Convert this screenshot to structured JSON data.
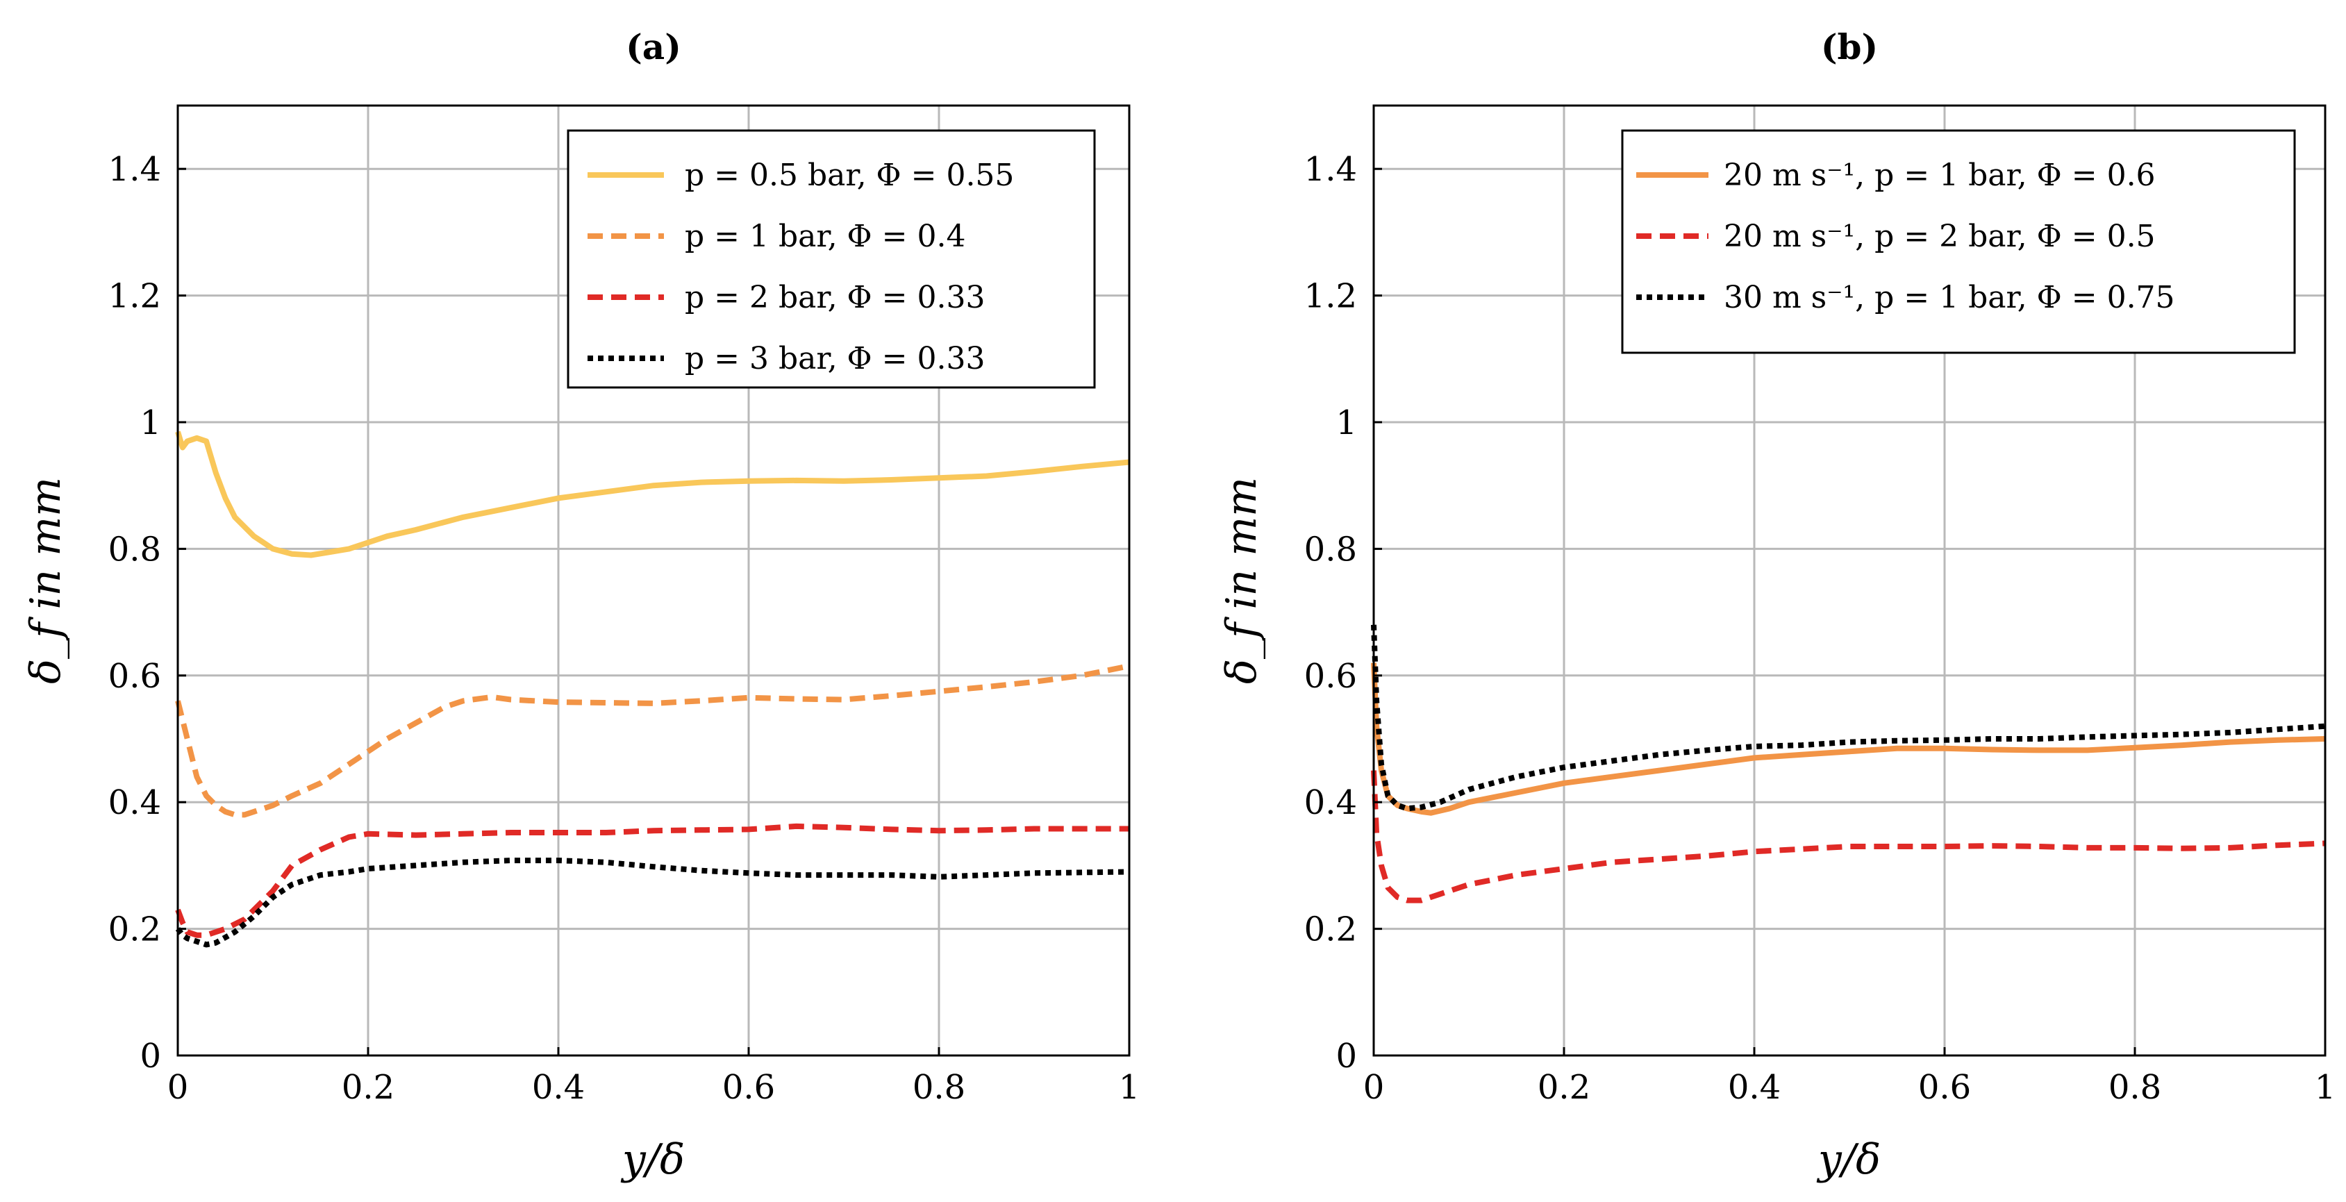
{
  "chart_data": [
    {
      "id": "a",
      "type": "line",
      "title": "(a)",
      "xlabel": "y/δ",
      "ylabel": "δ_f in mm",
      "xlim": [
        0,
        1
      ],
      "ylim": [
        0,
        1.5
      ],
      "xticks": [
        0,
        0.2,
        0.4,
        0.6,
        0.8,
        1
      ],
      "yticks": [
        0,
        0.2,
        0.4,
        0.6,
        0.8,
        1,
        1.2,
        1.4
      ],
      "xtick_labels": [
        "0",
        "0.2",
        "0.4",
        "0.6",
        "0.8",
        "1"
      ],
      "ytick_labels": [
        "0",
        "0.2",
        "0.4",
        "0.6",
        "0.8",
        "1",
        "1.2",
        "1.4"
      ],
      "grid": true,
      "legend_position": "top-right",
      "series": [
        {
          "name": "p = 0.5 bar, Φ = 0.55",
          "color": "#f9c75a",
          "dash": "solid",
          "x": [
            0,
            0.005,
            0.01,
            0.02,
            0.03,
            0.04,
            0.05,
            0.06,
            0.08,
            0.1,
            0.12,
            0.14,
            0.16,
            0.18,
            0.2,
            0.22,
            0.25,
            0.3,
            0.35,
            0.4,
            0.45,
            0.5,
            0.55,
            0.6,
            0.65,
            0.7,
            0.75,
            0.8,
            0.85,
            0.9,
            0.95,
            1
          ],
          "y": [
            0.985,
            0.96,
            0.97,
            0.975,
            0.97,
            0.92,
            0.88,
            0.85,
            0.82,
            0.8,
            0.792,
            0.79,
            0.795,
            0.8,
            0.81,
            0.82,
            0.83,
            0.85,
            0.865,
            0.88,
            0.89,
            0.9,
            0.905,
            0.907,
            0.908,
            0.907,
            0.909,
            0.912,
            0.915,
            0.922,
            0.93,
            0.937
          ]
        },
        {
          "name": "p = 1 bar, Φ = 0.4",
          "color": "#f29446",
          "dash": "dashed",
          "x": [
            0,
            0.01,
            0.02,
            0.03,
            0.04,
            0.05,
            0.06,
            0.07,
            0.08,
            0.1,
            0.12,
            0.15,
            0.18,
            0.2,
            0.22,
            0.25,
            0.28,
            0.3,
            0.33,
            0.35,
            0.4,
            0.45,
            0.5,
            0.55,
            0.6,
            0.65,
            0.7,
            0.75,
            0.8,
            0.85,
            0.9,
            0.95,
            1
          ],
          "y": [
            0.56,
            0.5,
            0.44,
            0.41,
            0.395,
            0.385,
            0.38,
            0.38,
            0.385,
            0.395,
            0.41,
            0.43,
            0.46,
            0.48,
            0.5,
            0.525,
            0.55,
            0.56,
            0.566,
            0.562,
            0.558,
            0.557,
            0.556,
            0.56,
            0.565,
            0.563,
            0.562,
            0.568,
            0.575,
            0.582,
            0.59,
            0.6,
            0.615
          ]
        },
        {
          "name": "p = 2 bar, Φ = 0.33",
          "color": "#e02a26",
          "dash": "dashed",
          "x": [
            0,
            0.005,
            0.01,
            0.02,
            0.03,
            0.05,
            0.07,
            0.1,
            0.12,
            0.15,
            0.18,
            0.2,
            0.25,
            0.3,
            0.35,
            0.4,
            0.45,
            0.5,
            0.55,
            0.6,
            0.65,
            0.7,
            0.75,
            0.8,
            0.85,
            0.9,
            0.95,
            1
          ],
          "y": [
            0.23,
            0.21,
            0.195,
            0.19,
            0.19,
            0.2,
            0.215,
            0.26,
            0.3,
            0.325,
            0.345,
            0.35,
            0.348,
            0.35,
            0.352,
            0.352,
            0.352,
            0.355,
            0.356,
            0.357,
            0.362,
            0.36,
            0.357,
            0.355,
            0.356,
            0.358,
            0.358,
            0.358
          ]
        },
        {
          "name": "p = 3 bar, Φ = 0.33",
          "color": "#000000",
          "dash": "dotted",
          "x": [
            0,
            0.005,
            0.01,
            0.02,
            0.03,
            0.04,
            0.06,
            0.08,
            0.1,
            0.12,
            0.15,
            0.18,
            0.2,
            0.25,
            0.3,
            0.35,
            0.4,
            0.45,
            0.5,
            0.55,
            0.6,
            0.65,
            0.7,
            0.75,
            0.8,
            0.85,
            0.9,
            0.95,
            1
          ],
          "y": [
            0.2,
            0.19,
            0.185,
            0.18,
            0.175,
            0.178,
            0.195,
            0.22,
            0.25,
            0.27,
            0.285,
            0.29,
            0.295,
            0.3,
            0.305,
            0.308,
            0.308,
            0.305,
            0.298,
            0.292,
            0.288,
            0.285,
            0.285,
            0.285,
            0.282,
            0.285,
            0.288,
            0.289,
            0.29
          ]
        }
      ]
    },
    {
      "id": "b",
      "type": "line",
      "title": "(b)",
      "xlabel": "y/δ",
      "ylabel": "δ_f in mm",
      "xlim": [
        0,
        1
      ],
      "ylim": [
        0,
        1.5
      ],
      "xticks": [
        0,
        0.2,
        0.4,
        0.6,
        0.8,
        1
      ],
      "yticks": [
        0,
        0.2,
        0.4,
        0.6,
        0.8,
        1,
        1.2,
        1.4
      ],
      "xtick_labels": [
        "0",
        "0.2",
        "0.4",
        "0.6",
        "0.8",
        "1"
      ],
      "ytick_labels": [
        "0",
        "0.2",
        "0.4",
        "0.6",
        "0.8",
        "1",
        "1.2",
        "1.4"
      ],
      "grid": true,
      "legend_position": "top-right",
      "series": [
        {
          "name": "20 m s⁻¹, p = 1 bar, Φ = 0.6",
          "color": "#f29446",
          "dash": "solid",
          "x": [
            0,
            0.003,
            0.008,
            0.015,
            0.025,
            0.035,
            0.05,
            0.06,
            0.08,
            0.1,
            0.15,
            0.2,
            0.25,
            0.3,
            0.35,
            0.4,
            0.45,
            0.5,
            0.55,
            0.6,
            0.65,
            0.7,
            0.75,
            0.8,
            0.85,
            0.9,
            0.95,
            1
          ],
          "y": [
            0.62,
            0.52,
            0.45,
            0.41,
            0.395,
            0.39,
            0.385,
            0.383,
            0.39,
            0.4,
            0.415,
            0.43,
            0.44,
            0.45,
            0.46,
            0.47,
            0.475,
            0.48,
            0.485,
            0.485,
            0.483,
            0.482,
            0.482,
            0.486,
            0.49,
            0.495,
            0.498,
            0.5
          ]
        },
        {
          "name": "20 m s⁻¹, p = 2 bar, Φ = 0.5",
          "color": "#e02a26",
          "dash": "dashed",
          "x": [
            0,
            0.003,
            0.008,
            0.015,
            0.025,
            0.035,
            0.05,
            0.07,
            0.1,
            0.15,
            0.2,
            0.25,
            0.3,
            0.35,
            0.4,
            0.45,
            0.5,
            0.55,
            0.6,
            0.65,
            0.7,
            0.75,
            0.8,
            0.85,
            0.9,
            0.95,
            1
          ],
          "y": [
            0.45,
            0.35,
            0.3,
            0.265,
            0.25,
            0.245,
            0.245,
            0.255,
            0.27,
            0.285,
            0.295,
            0.305,
            0.31,
            0.315,
            0.322,
            0.326,
            0.33,
            0.33,
            0.33,
            0.331,
            0.33,
            0.328,
            0.328,
            0.327,
            0.328,
            0.332,
            0.335
          ]
        },
        {
          "name": "30 m s⁻¹, p = 1 bar, Φ = 0.75",
          "color": "#000000",
          "dash": "dotted",
          "x": [
            0,
            0.003,
            0.008,
            0.015,
            0.025,
            0.035,
            0.05,
            0.07,
            0.1,
            0.15,
            0.2,
            0.25,
            0.3,
            0.35,
            0.4,
            0.45,
            0.5,
            0.55,
            0.6,
            0.65,
            0.7,
            0.75,
            0.8,
            0.85,
            0.9,
            0.95,
            1
          ],
          "y": [
            0.68,
            0.56,
            0.46,
            0.41,
            0.395,
            0.39,
            0.392,
            0.4,
            0.42,
            0.44,
            0.455,
            0.465,
            0.475,
            0.482,
            0.488,
            0.49,
            0.495,
            0.497,
            0.498,
            0.5,
            0.5,
            0.503,
            0.505,
            0.507,
            0.51,
            0.515,
            0.52
          ]
        }
      ]
    }
  ]
}
